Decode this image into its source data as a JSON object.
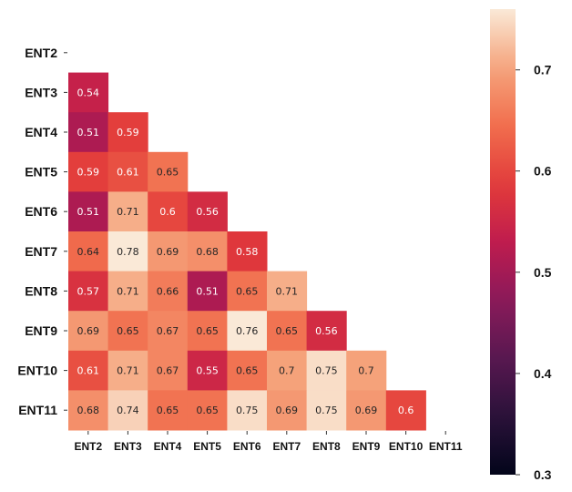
{
  "chart_data": {
    "type": "heatmap",
    "title": "",
    "xlabel": "",
    "ylabel": "",
    "rows": [
      "ENT2",
      "ENT3",
      "ENT4",
      "ENT5",
      "ENT6",
      "ENT7",
      "ENT8",
      "ENT9",
      "ENT10",
      "ENT11"
    ],
    "columns": [
      "ENT2",
      "ENT3",
      "ENT4",
      "ENT5",
      "ENT6",
      "ENT7",
      "ENT8",
      "ENT9",
      "ENT10",
      "ENT11"
    ],
    "values": [
      [],
      [
        0.54
      ],
      [
        0.51,
        0.59
      ],
      [
        0.59,
        0.61,
        0.65
      ],
      [
        0.51,
        0.71,
        0.6,
        0.56
      ],
      [
        0.64,
        0.78,
        0.69,
        0.68,
        0.58
      ],
      [
        0.57,
        0.71,
        0.66,
        0.51,
        0.65,
        0.71
      ],
      [
        0.69,
        0.65,
        0.67,
        0.65,
        0.76,
        0.65,
        0.56
      ],
      [
        0.61,
        0.71,
        0.67,
        0.55,
        0.65,
        0.7,
        0.75,
        0.7
      ],
      [
        0.68,
        0.74,
        0.65,
        0.65,
        0.75,
        0.69,
        0.75,
        0.69,
        0.6
      ]
    ],
    "value_labels": [
      [],
      [
        "0.54"
      ],
      [
        "0.51",
        "0.59"
      ],
      [
        "0.59",
        "0.61",
        "0.65"
      ],
      [
        "0.51",
        "0.71",
        "0.6",
        "0.56"
      ],
      [
        "0.64",
        "0.78",
        "0.69",
        "0.68",
        "0.58"
      ],
      [
        "0.57",
        "0.71",
        "0.66",
        "0.51",
        "0.65",
        "0.71"
      ],
      [
        "0.69",
        "0.65",
        "0.67",
        "0.65",
        "0.76",
        "0.65",
        "0.56"
      ],
      [
        "0.61",
        "0.71",
        "0.67",
        "0.55",
        "0.65",
        "0.7",
        "0.75",
        "0.7"
      ],
      [
        "0.68",
        "0.74",
        "0.65",
        "0.65",
        "0.75",
        "0.69",
        "0.75",
        "0.69",
        "0.6"
      ]
    ],
    "mask": "upper-triangle-including-diagonal",
    "colormap": "rocket",
    "colorbar": {
      "range": [
        0.3,
        0.76
      ],
      "ticks": [
        0.3,
        0.4,
        0.5,
        0.6,
        0.7
      ],
      "tick_labels": [
        "0.3",
        "0.4",
        "0.5",
        "0.6",
        "0.7"
      ],
      "placement": "right"
    },
    "grid": false,
    "legend": "none"
  }
}
